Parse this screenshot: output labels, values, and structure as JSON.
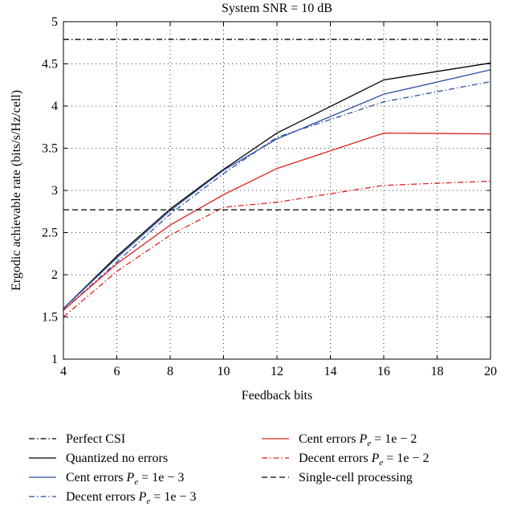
{
  "chart_data": {
    "type": "line",
    "title": "System SNR = 10 dB",
    "xlabel": "Feedback bits",
    "ylabel": "Ergodic achievable rate (bits/s/Hz/cell)",
    "xlim": [
      4,
      20
    ],
    "ylim": [
      1,
      5
    ],
    "xticks": [
      4,
      6,
      8,
      10,
      12,
      14,
      16,
      18,
      20
    ],
    "yticks": [
      1,
      1.5,
      2,
      2.5,
      3,
      3.5,
      4,
      4.5,
      5
    ],
    "xtick_labels": [
      "4",
      "6",
      "8",
      "10",
      "12",
      "14",
      "16",
      "18",
      "20"
    ],
    "ytick_labels": [
      "1",
      "1.5",
      "2",
      "2.5",
      "3",
      "3.5",
      "4",
      "4.5",
      "5"
    ],
    "grid": true,
    "legend_position": "below plot, two columns",
    "series": [
      {
        "name": "Perfect CSI",
        "color": "#000000",
        "dash": "dashdot",
        "x": [
          4,
          20
        ],
        "values": [
          4.79,
          4.79
        ]
      },
      {
        "name": "Quantized no errors",
        "color": "#000000",
        "dash": "solid",
        "x": [
          4,
          6,
          8,
          10,
          12,
          16,
          20
        ],
        "values": [
          1.6,
          2.22,
          2.78,
          3.25,
          3.68,
          4.31,
          4.51
        ]
      },
      {
        "name": "Cent errors",
        "name_sub_label": "P",
        "name_sub": "e",
        "name_tail": " = 1e − 3",
        "color": "#2a4fa3",
        "dash": "solid",
        "x": [
          4,
          6,
          8,
          10,
          12,
          16,
          20
        ],
        "values": [
          1.6,
          2.2,
          2.76,
          3.24,
          3.61,
          4.14,
          4.43
        ]
      },
      {
        "name": "Decent errors",
        "name_sub_label": "P",
        "name_sub": "e",
        "name_tail": " = 1e − 3",
        "color": "#2a4fa3",
        "dash": "dashdot",
        "x": [
          4,
          6,
          8,
          10,
          12,
          16,
          20
        ],
        "values": [
          1.58,
          2.15,
          2.72,
          3.2,
          3.63,
          4.05,
          4.29
        ]
      },
      {
        "name": "Cent errors",
        "name_sub_label": "P",
        "name_sub": "e",
        "name_tail": " = 1e − 2",
        "color": "#e02020",
        "dash": "solid",
        "x": [
          4,
          6,
          8,
          10,
          12,
          16,
          20
        ],
        "values": [
          1.58,
          2.13,
          2.59,
          2.95,
          3.26,
          3.68,
          3.67
        ]
      },
      {
        "name": "Decent errors",
        "name_sub_label": "P",
        "name_sub": "e",
        "name_tail": " = 1e − 2",
        "color": "#e02020",
        "dash": "dashdot",
        "x": [
          4,
          6,
          8,
          10,
          12,
          16,
          20
        ],
        "values": [
          1.5,
          2.04,
          2.47,
          2.8,
          2.86,
          3.06,
          3.11
        ]
      },
      {
        "name": "Single-cell processing",
        "color": "#000000",
        "dash": "dashed",
        "x": [
          4,
          20
        ],
        "values": [
          2.77,
          2.77
        ]
      }
    ]
  }
}
